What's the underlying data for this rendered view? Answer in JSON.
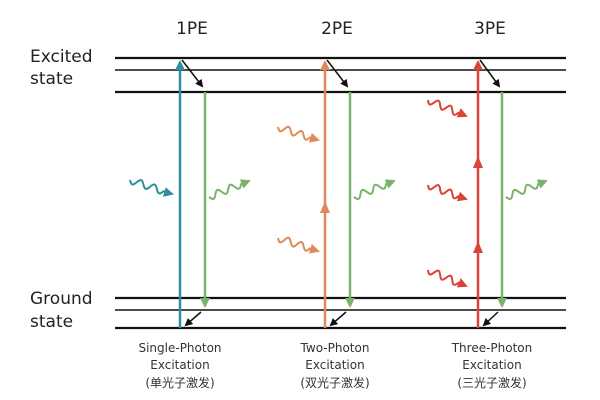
{
  "levels": {
    "excited": [
      "Excited",
      "state"
    ],
    "ground": [
      "Ground",
      "state"
    ]
  },
  "columns": [
    {
      "label": "1PE",
      "caption": [
        "Single-Photon",
        "Excitation",
        "(单光子激发)"
      ]
    },
    {
      "label": "2PE",
      "caption": [
        "Two-Photon",
        "Excitation",
        "(双光子激发)"
      ]
    },
    {
      "label": "3PE",
      "caption": [
        "Three-Photon",
        "Excitation",
        "(三光子激发)"
      ]
    }
  ]
}
